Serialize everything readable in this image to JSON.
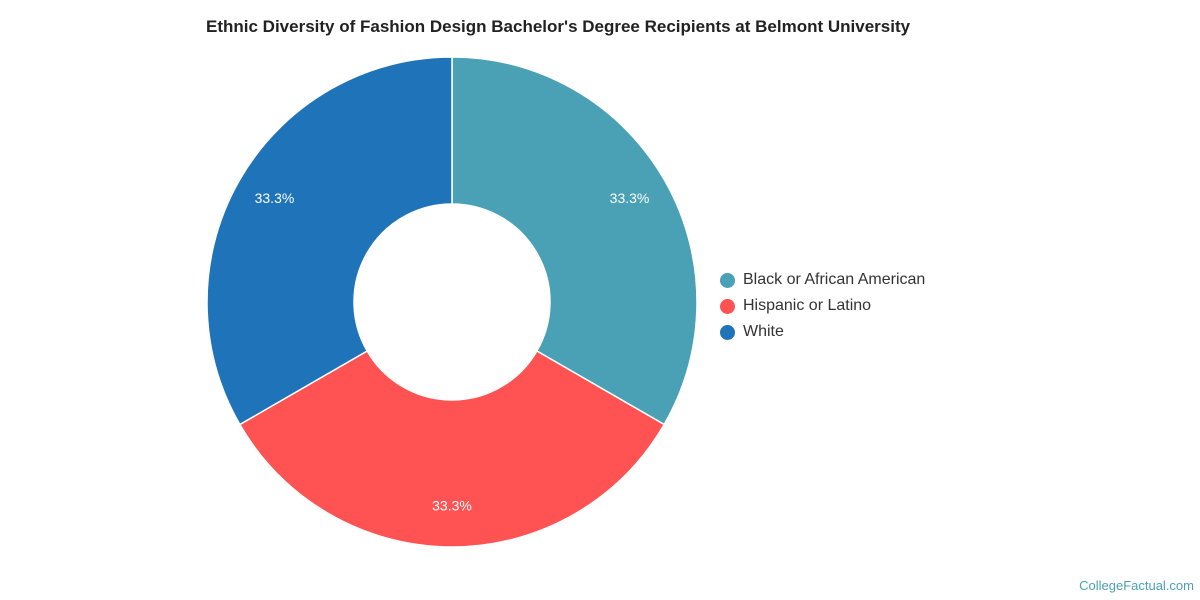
{
  "chart_data": {
    "type": "pie",
    "title": "Ethnic Diversity of Fashion Design Bachelor's Degree Recipients at Belmont University",
    "categories": [
      "Black or African American",
      "Hispanic or Latino",
      "White"
    ],
    "values": [
      33.3,
      33.3,
      33.3
    ],
    "labels": [
      "33.3%",
      "33.3%",
      "33.3%"
    ],
    "colors": [
      "#4aa0b4",
      "#ff5252",
      "#1f73b9"
    ],
    "donut": true,
    "legend_position": "right"
  },
  "footer": {
    "source": "CollegeFactual.com"
  }
}
